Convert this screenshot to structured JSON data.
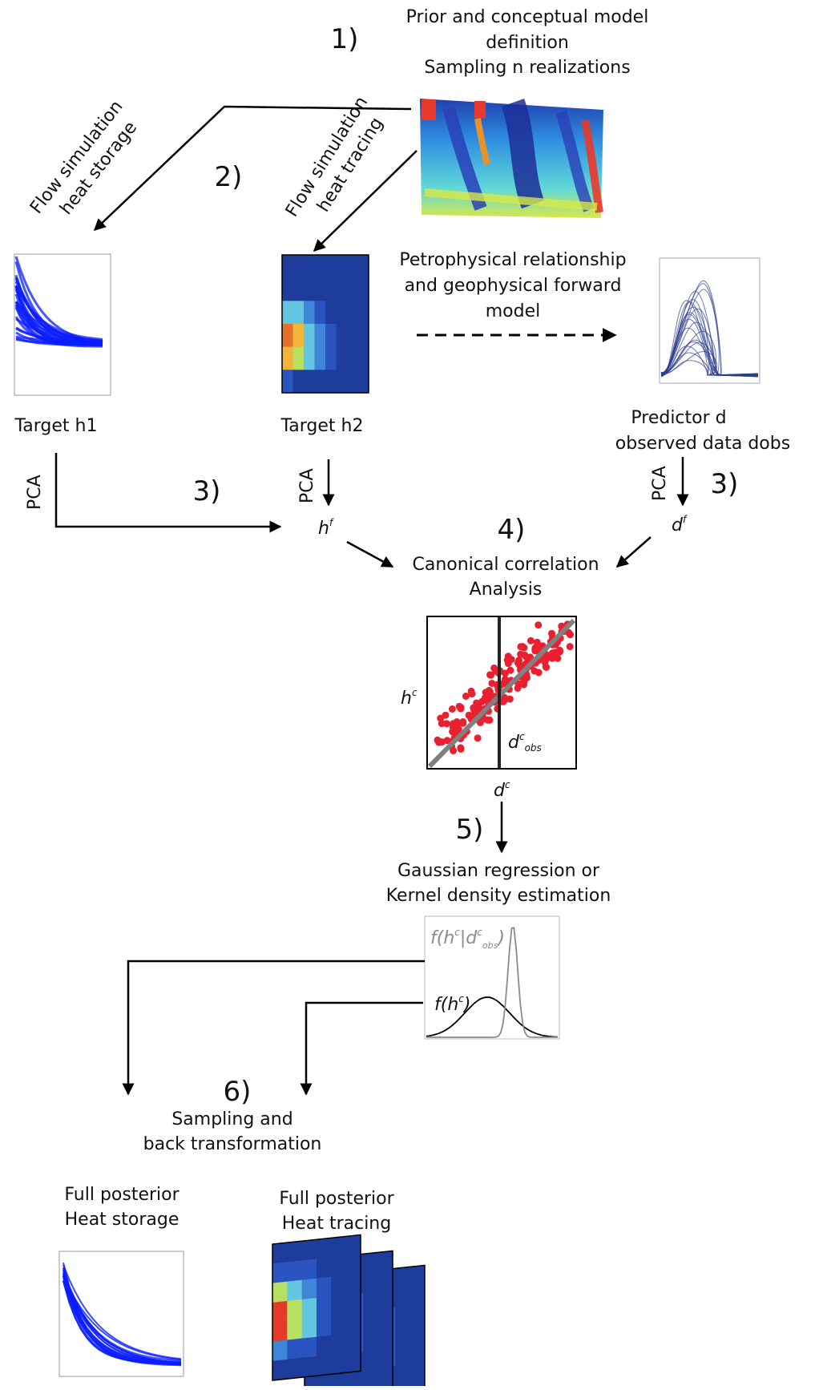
{
  "steps": {
    "s1": {
      "num": "1)",
      "lines": [
        "Prior and conceptual model",
        "definition",
        "Sampling n realizations"
      ]
    },
    "s2": {
      "num": "2)"
    },
    "s3a": {
      "num": "3)"
    },
    "s3b": {
      "num": "3)"
    },
    "s4": {
      "num": "4)",
      "lines": [
        "Canonical correlation",
        "Analysis"
      ]
    },
    "s5": {
      "num": "5)",
      "lines": [
        "Gaussian regression or",
        "Kernel density estimation"
      ]
    },
    "s6": {
      "num": "6)",
      "lines": [
        "Sampling and",
        "back transformation"
      ]
    }
  },
  "flow_storage": [
    "Flow simulation",
    "heat storage"
  ],
  "flow_tracing": [
    "Flow simulation",
    "heat tracing"
  ],
  "petro": [
    "Petrophysical relationship",
    "and geophysical forward",
    "model"
  ],
  "targets": {
    "h1": "Target h1",
    "h2": "Target h2"
  },
  "predictor": [
    "Predictor d",
    "observed data dobs"
  ],
  "pca": "PCA",
  "reduced": {
    "h_base": "h",
    "h_sup": "f",
    "d_base": "d",
    "d_sup": "f"
  },
  "cca_plot": {
    "y_base": "h",
    "y_sup": "c",
    "x_base": "d",
    "x_sup": "c",
    "obs_base": "d",
    "obs_sup": "c",
    "obs_sub": "obs"
  },
  "kde_plot": {
    "posterior": {
      "p1": "f(h",
      "sup1": "c",
      "bar": "|d",
      "sup2": "c",
      "sub": "obs",
      "close": ")"
    },
    "prior": {
      "p1": "f(h",
      "sup1": "c",
      "close": ")"
    }
  },
  "posterior": {
    "storage": [
      "Full posterior",
      "Heat storage"
    ],
    "tracing": [
      "Full posterior",
      "Heat tracing"
    ]
  },
  "colors": {
    "curves_blue": "#0a1eff",
    "predictor_navy": "#2b3d8c",
    "scatter_red": "#e8202f",
    "regression_gray": "#808080",
    "jet_dark": "#1e3c9c",
    "jet_hot": "#e83a2a"
  }
}
